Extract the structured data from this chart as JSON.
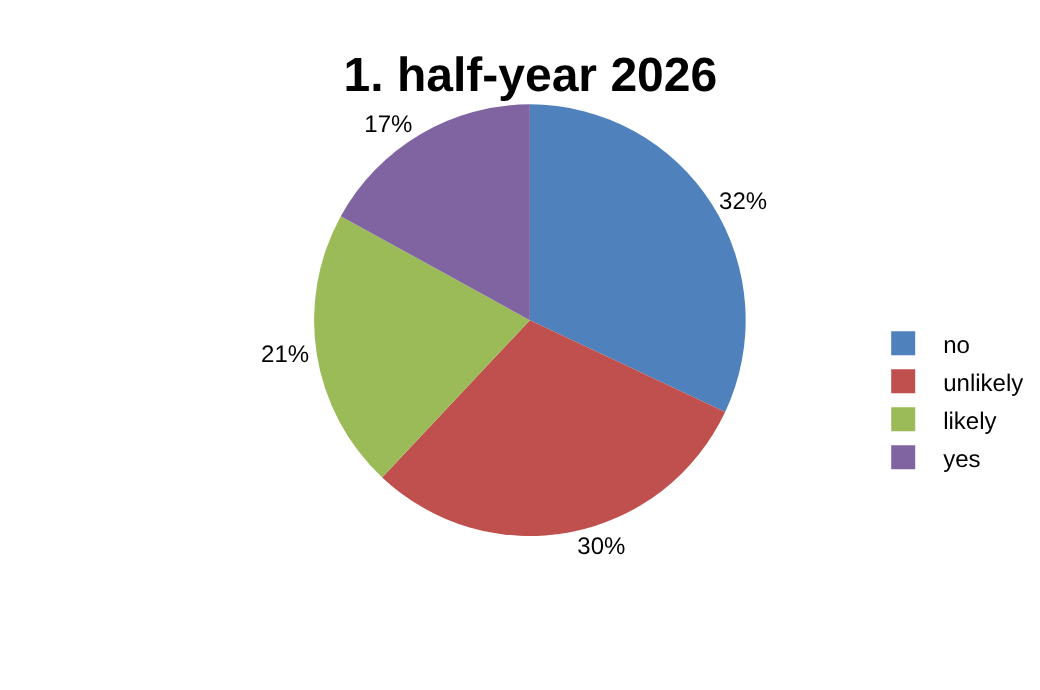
{
  "chart_data": {
    "type": "pie",
    "title": "1. half-year 2026",
    "categories": [
      "no",
      "unlikely",
      "likely",
      "yes"
    ],
    "values": [
      32,
      30,
      21,
      17
    ],
    "value_labels": [
      "32%",
      "30%",
      "21%",
      "17%"
    ],
    "colors": [
      "#4f81bd",
      "#c0504d",
      "#9bbb59",
      "#8064a2"
    ],
    "legend": "right"
  }
}
